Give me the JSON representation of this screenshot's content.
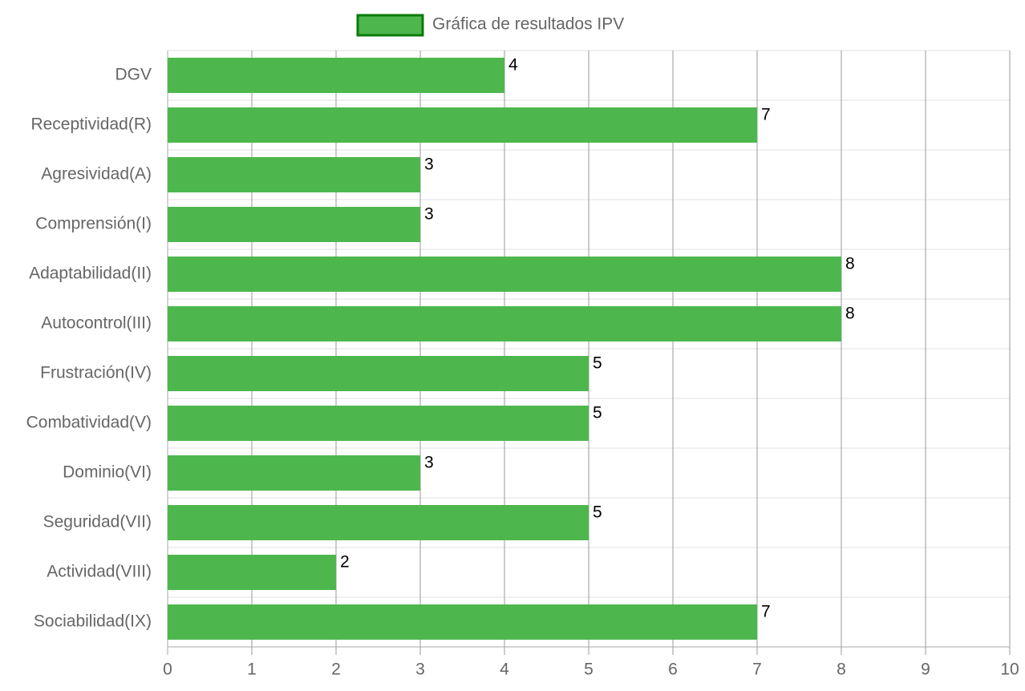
{
  "chart_data": {
    "type": "bar",
    "orientation": "horizontal",
    "categories": [
      "DGV",
      "Receptividad(R)",
      "Agresividad(A)",
      "Comprensión(I)",
      "Adaptabilidad(II)",
      "Autocontrol(III)",
      "Frustración(IV)",
      "Combatividad(V)",
      "Dominio(VI)",
      "Seguridad(VII)",
      "Actividad(VIII)",
      "Sociabilidad(IX)"
    ],
    "series": [
      {
        "name": "Gráfica de resultados IPV",
        "color": "#4db74d",
        "values": [
          4,
          7,
          3,
          3,
          8,
          8,
          5,
          5,
          3,
          5,
          2,
          7
        ]
      }
    ],
    "xlim": [
      0,
      10
    ],
    "xticks": [
      0,
      1,
      2,
      3,
      4,
      5,
      6,
      7,
      8,
      9,
      10
    ],
    "grid": true,
    "legend": "top"
  }
}
